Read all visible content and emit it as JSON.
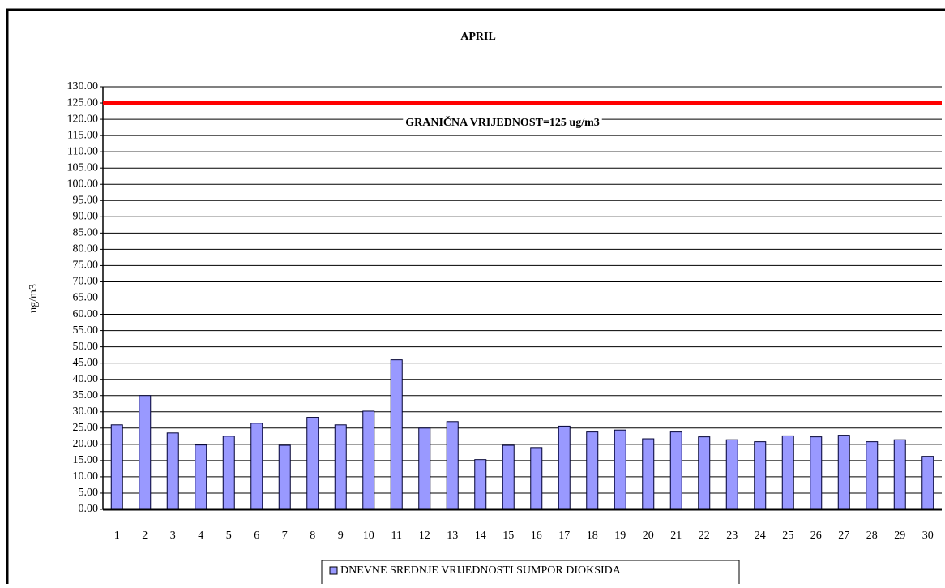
{
  "chart_data": {
    "type": "bar",
    "title": "APRIL",
    "y_label": "ug/m3",
    "categories": [
      "1",
      "2",
      "3",
      "4",
      "5",
      "6",
      "7",
      "8",
      "9",
      "10",
      "11",
      "12",
      "13",
      "14",
      "15",
      "16",
      "17",
      "18",
      "19",
      "20",
      "21",
      "22",
      "23",
      "24",
      "25",
      "26",
      "27",
      "28",
      "29",
      "30"
    ],
    "series": [
      {
        "name": "DNEVNE SREDNJE VRIJEDNOSTI SUMPOR DIOKSIDA",
        "color": "#9999ff",
        "values": [
          26,
          35,
          23.5,
          19.8,
          22.5,
          26.5,
          19.7,
          28.3,
          26,
          30.2,
          46,
          25,
          27,
          15.3,
          19.7,
          19,
          25.6,
          23.8,
          24.4,
          21.7,
          23.8,
          22.3,
          21.4,
          20.8,
          22.6,
          22.3,
          22.8,
          20.8,
          21.4,
          16.3
        ]
      }
    ],
    "threshold": {
      "value": 125,
      "label": "GRANIČNA VRIJEDNOST=125 ug/m3",
      "color": "#ff0000"
    },
    "ylim": [
      0,
      130
    ],
    "yticks": [
      {
        "value": 0,
        "label": "0.00"
      },
      {
        "value": 5,
        "label": "5.00"
      },
      {
        "value": 10,
        "label": "10.00"
      },
      {
        "value": 15,
        "label": "15.00"
      },
      {
        "value": 20,
        "label": "20.00"
      },
      {
        "value": 25,
        "label": "25.00"
      },
      {
        "value": 30,
        "label": "30.00"
      },
      {
        "value": 35,
        "label": "35.00"
      },
      {
        "value": 40,
        "label": "40.00"
      },
      {
        "value": 45,
        "label": "45.00"
      },
      {
        "value": 50,
        "label": "50.00"
      },
      {
        "value": 55,
        "label": "55.00"
      },
      {
        "value": 60,
        "label": "60.00"
      },
      {
        "value": 65,
        "label": "65.00"
      },
      {
        "value": 70,
        "label": "70.00"
      },
      {
        "value": 75,
        "label": "75.00"
      },
      {
        "value": 80,
        "label": "80.00"
      },
      {
        "value": 85,
        "label": "85.00"
      },
      {
        "value": 90,
        "label": "90.00"
      },
      {
        "value": 95,
        "label": "95.00"
      },
      {
        "value": 100,
        "label": "100.00"
      },
      {
        "value": 105,
        "label": "105.00"
      },
      {
        "value": 110,
        "label": "110.00"
      },
      {
        "value": 115,
        "label": "115.00"
      },
      {
        "value": 120,
        "label": "120.00"
      },
      {
        "value": 125,
        "label": "125.00"
      },
      {
        "value": 130,
        "label": "130.00"
      }
    ],
    "grid": true
  }
}
